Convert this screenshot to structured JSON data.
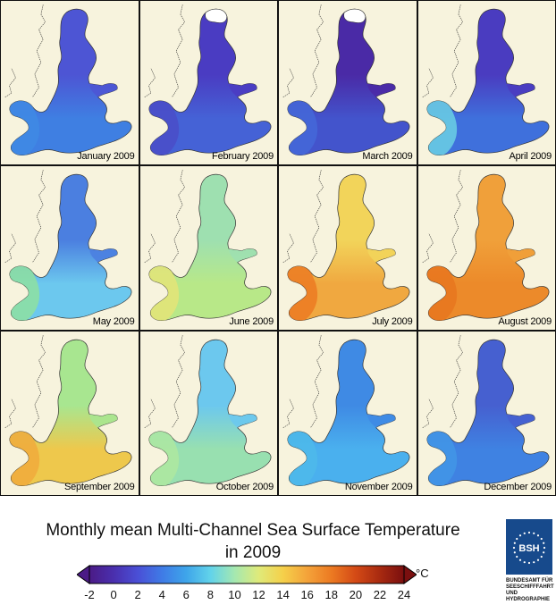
{
  "title_line1": "Monthly mean Multi-Channel Sea Surface Temperature",
  "title_line2": "in 2009",
  "colorbar": {
    "unit": "°C",
    "min": -2,
    "max": 24,
    "ticks": [
      "-2",
      "0",
      "2",
      "4",
      "6",
      "8",
      "10",
      "12",
      "14",
      "16",
      "18",
      "20",
      "22",
      "24"
    ],
    "tick_values": [
      -2,
      0,
      2,
      4,
      6,
      8,
      10,
      12,
      14,
      16,
      18,
      20,
      22,
      24
    ],
    "color_stops": [
      "#4b1b86",
      "#4a2fae",
      "#4a4fd6",
      "#3f7be6",
      "#3ea5ea",
      "#62d3ea",
      "#a5e8b0",
      "#dfea7a",
      "#f5d04a",
      "#f4a33a",
      "#ec7a22",
      "#d44a16",
      "#a82a10",
      "#7a0f0f"
    ]
  },
  "panels": [
    {
      "label": "January 2009",
      "north": "#4d55d4",
      "south": "#3f7fe2",
      "west": "#3f8ae4",
      "ice": false
    },
    {
      "label": "February 2009",
      "north": "#4a3cc2",
      "south": "#4562d6",
      "west": "#4a4dc8",
      "ice": true
    },
    {
      "label": "March 2009",
      "north": "#4a2aa6",
      "south": "#4354cc",
      "west": "#4468d8",
      "ice": true
    },
    {
      "label": "April 2009",
      "north": "#4a3cc0",
      "south": "#3f70dc",
      "west": "#6bd0e4",
      "ice": false
    },
    {
      "label": "May 2009",
      "north": "#4b7fe0",
      "south": "#6cc8ee",
      "west": "#8ee0a0",
      "ice": false
    },
    {
      "label": "June 2009",
      "north": "#9ee0b0",
      "south": "#b8e888",
      "west": "#e4e478",
      "ice": false
    },
    {
      "label": "July 2009",
      "north": "#f2d45a",
      "south": "#f0a840",
      "west": "#ec7a22",
      "ice": false
    },
    {
      "label": "August 2009",
      "north": "#f0a03a",
      "south": "#ec8a2a",
      "west": "#e8761e",
      "ice": false
    },
    {
      "label": "September 2009",
      "north": "#a8e690",
      "south": "#eec84c",
      "west": "#f0aa3c",
      "ice": false
    },
    {
      "label": "October 2009",
      "north": "#6cc8ee",
      "south": "#98e0b0",
      "west": "#aee8a0",
      "ice": false
    },
    {
      "label": "November 2009",
      "north": "#3f8ae4",
      "south": "#4ab0ee",
      "west": "#4dbaea",
      "ice": false
    },
    {
      "label": "December 2009",
      "north": "#4660d0",
      "south": "#3f82e2",
      "west": "#4296e6",
      "ice": false
    }
  ],
  "logo": {
    "mark": "BSH",
    "lines": [
      "BUNDESAMT FÜR",
      "SEESCHIFFFAHRT",
      "UND",
      "HYDROGRAPHIE"
    ]
  }
}
